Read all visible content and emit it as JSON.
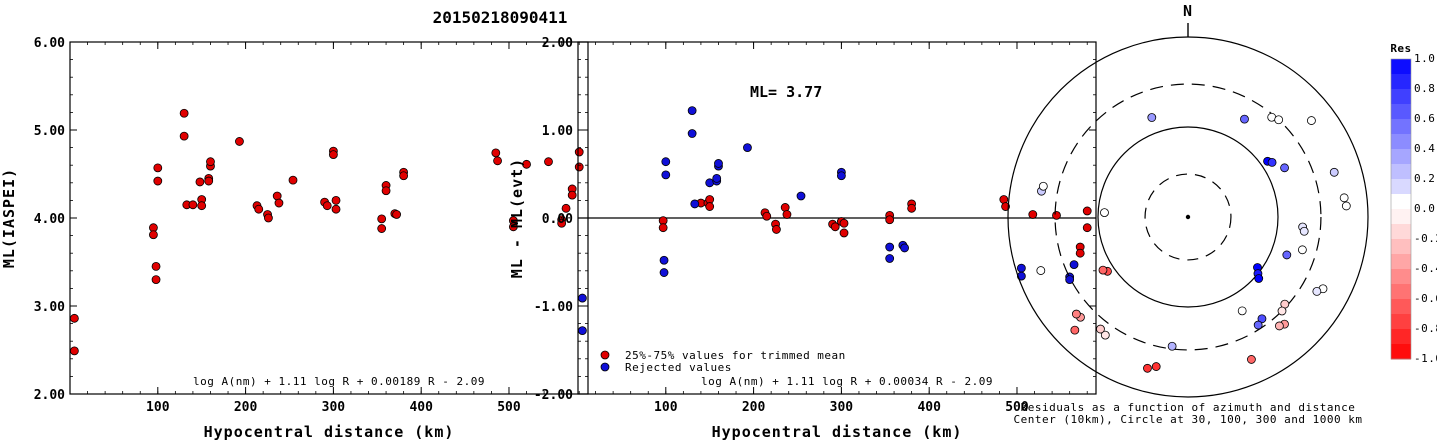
{
  "page_title": "20150218090411",
  "chart_data": [
    {
      "type": "scatter",
      "xlabel": "Hypocentral distance (km)",
      "ylabel": "ML(IASPEI)",
      "xlim": [
        0,
        590
      ],
      "ylim": [
        2.0,
        6.0
      ],
      "x_ticks": [
        "100",
        "200",
        "300",
        "400",
        "500"
      ],
      "x_tick_values": [
        100,
        200,
        300,
        400,
        500
      ],
      "y_ticks": [
        "2.00",
        "3.00",
        "4.00",
        "5.00",
        "6.00"
      ],
      "y_tick_values": [
        2,
        3,
        4,
        5,
        6
      ],
      "formula": "log A(nm) + 1.11 log R + 0.00189 R - 2.09",
      "marker_color": "#e00000",
      "points": [
        [
          5,
          2.86
        ],
        [
          5,
          2.49
        ],
        [
          95,
          3.89
        ],
        [
          95,
          3.81
        ],
        [
          100,
          4.57
        ],
        [
          100,
          4.42
        ],
        [
          98,
          3.45
        ],
        [
          98,
          3.3
        ],
        [
          130,
          5.19
        ],
        [
          130,
          4.93
        ],
        [
          133,
          4.15
        ],
        [
          140,
          4.15
        ],
        [
          148,
          4.41
        ],
        [
          150,
          4.21
        ],
        [
          150,
          4.14
        ],
        [
          158,
          4.45
        ],
        [
          160,
          4.59
        ],
        [
          160,
          4.64
        ],
        [
          158,
          4.42
        ],
        [
          193,
          4.87
        ],
        [
          213,
          4.14
        ],
        [
          215,
          4.1
        ],
        [
          225,
          4.04
        ],
        [
          226,
          4.0
        ],
        [
          236,
          4.25
        ],
        [
          238,
          4.17
        ],
        [
          254,
          4.43
        ],
        [
          290,
          4.18
        ],
        [
          293,
          4.14
        ],
        [
          300,
          4.76
        ],
        [
          300,
          4.72
        ],
        [
          303,
          4.2
        ],
        [
          303,
          4.1
        ],
        [
          355,
          3.99
        ],
        [
          355,
          3.88
        ],
        [
          360,
          4.37
        ],
        [
          360,
          4.31
        ],
        [
          370,
          4.05
        ],
        [
          372,
          4.04
        ],
        [
          380,
          4.52
        ],
        [
          380,
          4.48
        ],
        [
          485,
          4.74
        ],
        [
          487,
          4.65
        ],
        [
          505,
          3.97
        ],
        [
          505,
          3.9
        ],
        [
          520,
          4.61
        ],
        [
          545,
          4.64
        ],
        [
          560,
          3.98
        ],
        [
          560,
          3.94
        ],
        [
          565,
          4.11
        ],
        [
          572,
          4.33
        ],
        [
          572,
          4.26
        ],
        [
          580,
          4.75
        ],
        [
          580,
          4.58
        ]
      ]
    },
    {
      "type": "scatter",
      "xlabel": "Hypocentral distance (km)",
      "ylabel": "ML - ML(evt)",
      "xlim": [
        0,
        590
      ],
      "ylim": [
        -2.0,
        2.0
      ],
      "x_ticks": [
        "100",
        "200",
        "300",
        "400",
        "500"
      ],
      "x_tick_values": [
        100,
        200,
        300,
        400,
        500
      ],
      "y_ticks": [
        "-2.00",
        "-1.00",
        "0.00",
        "1.00",
        "2.00"
      ],
      "y_tick_values": [
        -2,
        -1,
        0,
        1,
        2
      ],
      "annotation": "ML= 3.77",
      "formula": "log A(nm) + 1.11 log R + 0.00034 R - 2.09",
      "legend": [
        {
          "label": "25%-75% values for trimmed mean",
          "color": "#e00000"
        },
        {
          "label": "Rejected values",
          "color": "#1010d8"
        }
      ],
      "series": [
        {
          "name": "25%-75% values for trimmed mean",
          "color": "#e00000",
          "points": [
            [
              97,
              -0.03
            ],
            [
              97,
              -0.11
            ],
            [
              140,
              0.17
            ],
            [
              148,
              0.17
            ],
            [
              150,
              0.21
            ],
            [
              150,
              0.13
            ],
            [
              213,
              0.06
            ],
            [
              215,
              0.02
            ],
            [
              225,
              -0.07
            ],
            [
              226,
              -0.13
            ],
            [
              236,
              0.12
            ],
            [
              238,
              0.04
            ],
            [
              290,
              -0.07
            ],
            [
              293,
              -0.1
            ],
            [
              300,
              -0.04
            ],
            [
              303,
              -0.06
            ],
            [
              303,
              -0.17
            ],
            [
              355,
              0.03
            ],
            [
              355,
              -0.02
            ],
            [
              380,
              0.16
            ],
            [
              380,
              0.11
            ],
            [
              485,
              0.21
            ],
            [
              487,
              0.13
            ],
            [
              518,
              0.04
            ],
            [
              545,
              0.03
            ],
            [
              580,
              0.08
            ],
            [
              580,
              -0.11
            ],
            [
              572,
              -0.33
            ],
            [
              572,
              -0.4
            ]
          ]
        },
        {
          "name": "Rejected values",
          "color": "#1010d8",
          "points": [
            [
              5,
              -0.91
            ],
            [
              5,
              -1.28
            ],
            [
              100,
              0.64
            ],
            [
              100,
              0.49
            ],
            [
              98,
              -0.48
            ],
            [
              98,
              -0.62
            ],
            [
              130,
              1.22
            ],
            [
              130,
              0.96
            ],
            [
              133,
              0.16
            ],
            [
              150,
              0.4
            ],
            [
              158,
              0.42
            ],
            [
              160,
              0.59
            ],
            [
              160,
              0.62
            ],
            [
              158,
              0.45
            ],
            [
              193,
              0.8
            ],
            [
              254,
              0.25
            ],
            [
              300,
              0.52
            ],
            [
              300,
              0.48
            ],
            [
              355,
              -0.33
            ],
            [
              355,
              -0.46
            ],
            [
              370,
              -0.31
            ],
            [
              372,
              -0.34
            ],
            [
              505,
              -0.57
            ],
            [
              505,
              -0.66
            ],
            [
              560,
              -0.67
            ],
            [
              560,
              -0.7
            ],
            [
              565,
              -0.53
            ]
          ]
        }
      ]
    },
    {
      "type": "scatter",
      "subtype": "polar",
      "north_label": "N",
      "caption_line1": "Residuals as a function of azimuth and distance",
      "caption_line2": "Center (10km), Circle at 30, 100, 300 and 1000 km",
      "colorbar_title": "Res",
      "colorbar_ticks": [
        "1.0",
        "0.8",
        "0.6",
        "0.4",
        "0.2",
        "0.0",
        "-0.2",
        "-0.4",
        "-0.6",
        "-0.8",
        "-1.0"
      ],
      "colorbar_values": [
        1.0,
        0.8,
        0.6,
        0.4,
        0.2,
        0.0,
        -0.2,
        -0.4,
        -0.6,
        -0.8,
        -1.0
      ],
      "stations": [
        {
          "azimuth": 340,
          "distance": 150,
          "res": 0.4
        },
        {
          "azimuth": 30,
          "distance": 180,
          "res": 0.6
        },
        {
          "azimuth": 40,
          "distance": 280,
          "res": 0.0
        },
        {
          "azimuth": 43,
          "distance": 300,
          "res": 0.0
        },
        {
          "azimuth": 52,
          "distance": 550,
          "res": 0.0
        },
        {
          "azimuth": 55,
          "distance": 120,
          "res": 1.0
        },
        {
          "azimuth": 57,
          "distance": 130,
          "res": 0.8
        },
        {
          "azimuth": 63,
          "distance": 160,
          "res": 0.6
        },
        {
          "azimuth": 73,
          "distance": 500,
          "res": 0.2
        },
        {
          "azimuth": 83,
          "distance": 560,
          "res": 0.0
        },
        {
          "azimuth": 86,
          "distance": 580,
          "res": 0.0
        },
        {
          "azimuth": 95,
          "distance": 190,
          "res": 0.1
        },
        {
          "azimuth": 97,
          "distance": 200,
          "res": 0.1
        },
        {
          "azimuth": 106,
          "distance": 210,
          "res": 0.0
        },
        {
          "azimuth": 111,
          "distance": 150,
          "res": 0.6
        },
        {
          "azimuth": 118,
          "distance": 500,
          "res": 0.0
        },
        {
          "azimuth": 120,
          "distance": 450,
          "res": 0.1
        },
        {
          "azimuth": 126,
          "distance": 90,
          "res": 1.0
        },
        {
          "azimuth": 129,
          "distance": 100,
          "res": 0.9
        },
        {
          "azimuth": 131,
          "distance": 110,
          "res": 1.0
        },
        {
          "azimuth": 132,
          "distance": 280,
          "res": -0.2
        },
        {
          "azimuth": 135,
          "distance": 300,
          "res": -0.1
        },
        {
          "azimuth": 138,
          "distance": 400,
          "res": -0.4
        },
        {
          "azimuth": 140,
          "distance": 380,
          "res": -0.3
        },
        {
          "azimuth": 144,
          "distance": 250,
          "res": 0.7
        },
        {
          "azimuth": 147,
          "distance": 270,
          "res": 0.6
        },
        {
          "azimuth": 150,
          "distance": 160,
          "res": 0.0
        },
        {
          "azimuth": 156,
          "distance": 540,
          "res": -0.6
        },
        {
          "azimuth": 187,
          "distance": 280,
          "res": 0.3
        },
        {
          "azimuth": 192,
          "distance": 500,
          "res": -0.8
        },
        {
          "azimuth": 195,
          "distance": 550,
          "res": -0.8
        },
        {
          "azimuth": 215,
          "distance": 400,
          "res": -0.1
        },
        {
          "azimuth": 218,
          "distance": 380,
          "res": -0.2
        },
        {
          "azimuth": 225,
          "distance": 600,
          "res": -0.6
        },
        {
          "azimuth": 227,
          "distance": 430,
          "res": -0.4
        },
        {
          "azimuth": 229,
          "distance": 440,
          "res": -0.5
        },
        {
          "azimuth": 236,
          "distance": 120,
          "res": -0.7
        },
        {
          "azimuth": 238,
          "distance": 130,
          "res": -0.6
        },
        {
          "azimuth": 250,
          "distance": 550,
          "res": 0.0
        },
        {
          "azimuth": 273,
          "distance": 85,
          "res": 0.0
        },
        {
          "azimuth": 280,
          "distance": 450,
          "res": 0.2
        },
        {
          "azimuth": 282,
          "distance": 440,
          "res": 0.0
        }
      ]
    }
  ]
}
